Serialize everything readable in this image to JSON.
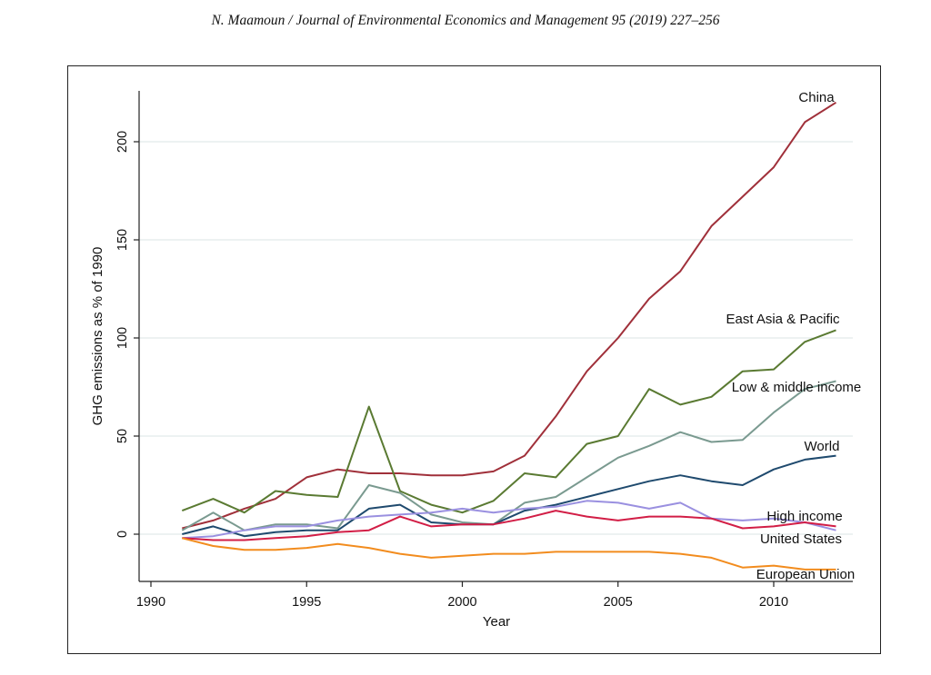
{
  "header": "N. Maamoun / Journal of Environmental Economics and Management 95 (2019) 227–256",
  "chart_data": {
    "type": "line",
    "xlabel": "Year",
    "ylabel": "GHG emissions as % of 1990",
    "xlim": [
      1990,
      2012
    ],
    "ylim": [
      -20,
      220
    ],
    "xticks": [
      1990,
      1995,
      2000,
      2005,
      2010
    ],
    "yticks": [
      0,
      50,
      100,
      150,
      200
    ],
    "grid": "horizontal",
    "x": [
      1991,
      1992,
      1993,
      1994,
      1995,
      1996,
      1997,
      1998,
      1999,
      2000,
      2001,
      2002,
      2003,
      2004,
      2005,
      2006,
      2007,
      2008,
      2009,
      2010,
      2011,
      2012
    ],
    "series": [
      {
        "name": "China",
        "color": "#a0303a",
        "values": [
          3,
          7,
          13,
          18,
          29,
          33,
          31,
          31,
          30,
          30,
          32,
          40,
          60,
          83,
          100,
          120,
          134,
          157,
          172,
          187,
          210,
          220
        ]
      },
      {
        "name": "East Asia & Pacific",
        "color": "#5a7a32",
        "values": [
          12,
          18,
          11,
          22,
          20,
          19,
          65,
          22,
          15,
          11,
          17,
          31,
          29,
          46,
          50,
          74,
          66,
          70,
          83,
          84,
          98,
          104
        ]
      },
      {
        "name": "Low & middle income",
        "color": "#7a9a90",
        "values": [
          2,
          11,
          2,
          5,
          5,
          3,
          25,
          21,
          10,
          6,
          5,
          16,
          19,
          29,
          39,
          45,
          52,
          47,
          48,
          62,
          74,
          78
        ]
      },
      {
        "name": "World",
        "color": "#1f4a6e",
        "values": [
          0,
          4,
          -1,
          1,
          2,
          2,
          13,
          15,
          6,
          5,
          5,
          12,
          15,
          19,
          23,
          27,
          30,
          27,
          25,
          33,
          38,
          40
        ]
      },
      {
        "name": "High income",
        "color": "#9a90e0",
        "values": [
          -2,
          -1,
          2,
          4,
          4,
          7,
          9,
          10,
          11,
          13,
          11,
          13,
          14,
          17,
          16,
          13,
          16,
          8,
          7,
          8,
          6,
          2
        ]
      },
      {
        "name": "United States",
        "color": "#d21e46",
        "values": [
          -2,
          -3,
          -3,
          -2,
          -1,
          1,
          2,
          9,
          4,
          5,
          5,
          8,
          12,
          9,
          7,
          9,
          9,
          8,
          3,
          4,
          6,
          4
        ]
      },
      {
        "name": "European Union",
        "color": "#f28c1e",
        "values": [
          -2,
          -6,
          -8,
          -8,
          -7,
          -5,
          -7,
          -10,
          -12,
          -11,
          -10,
          -10,
          -9,
          -9,
          -9,
          -9,
          -10,
          -12,
          -17,
          -16,
          -18,
          -18
        ]
      }
    ]
  }
}
